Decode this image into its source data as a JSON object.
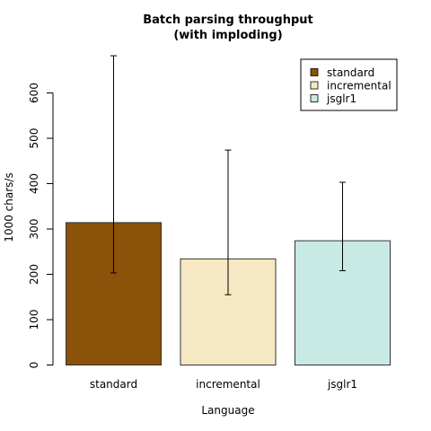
{
  "chart_data": {
    "type": "bar",
    "title": "Batch parsing throughput",
    "subtitle": "(with imploding)",
    "xlabel": "Language",
    "ylabel": "1000 chars/s",
    "categories": [
      "standard",
      "incremental",
      "jsglr1"
    ],
    "values": [
      314,
      234,
      274
    ],
    "error_bars": [
      {
        "low": 203,
        "high": 682
      },
      {
        "low": 155,
        "high": 474
      },
      {
        "low": 208,
        "high": 403
      }
    ],
    "colors": [
      "#8B520A",
      "#F5E8C3",
      "#C8EAE5"
    ],
    "ylim": [
      0,
      680
    ],
    "yticks": [
      0,
      100,
      200,
      300,
      400,
      500,
      600
    ],
    "grid": false,
    "legend": {
      "placement": "top-right",
      "entries": [
        "standard",
        "incremental",
        "jsglr1"
      ]
    }
  }
}
